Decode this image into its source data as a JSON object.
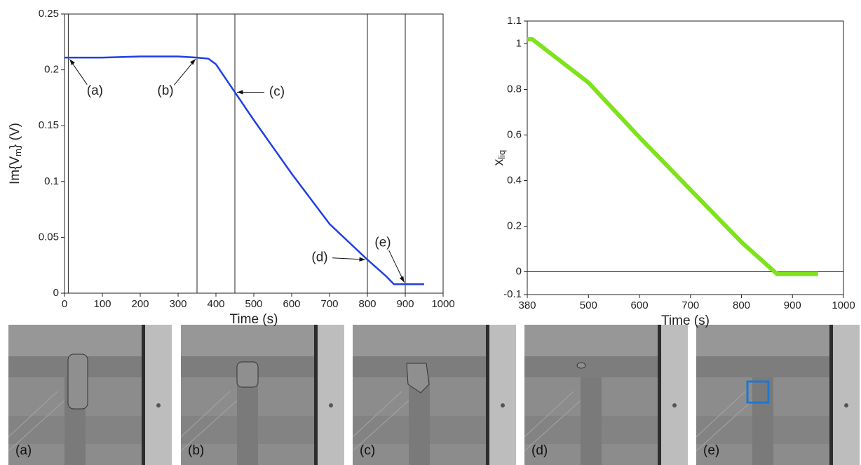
{
  "chart_data": [
    {
      "type": "line",
      "xlabel": "Time (s)",
      "ylabel": {
        "main": "Im{V",
        "sub": "m",
        "tail": "} (V)"
      },
      "xlim": [
        0,
        1000
      ],
      "xticks": [
        0,
        100,
        200,
        300,
        400,
        500,
        600,
        700,
        800,
        900,
        1000
      ],
      "ylim": [
        0,
        0.25
      ],
      "yticks": [
        0,
        0.05,
        0.1,
        0.15,
        0.2,
        0.25
      ],
      "vlines": [
        10,
        350,
        450,
        800,
        900
      ],
      "series": [
        {
          "color": "#1f3fe6",
          "x": [
            0,
            100,
            200,
            300,
            350,
            380,
            400,
            450,
            500,
            600,
            700,
            800,
            850,
            870,
            900,
            950
          ],
          "values": [
            0.211,
            0.211,
            0.212,
            0.212,
            0.211,
            0.21,
            0.205,
            0.18,
            0.155,
            0.107,
            0.062,
            0.03,
            0.015,
            0.008,
            0.008,
            0.008
          ]
        }
      ],
      "annotations": [
        {
          "text": "(a)",
          "x": 10,
          "y": 0.211
        },
        {
          "text": "(b)",
          "x": 350,
          "y": 0.211
        },
        {
          "text": "(c)",
          "x": 450,
          "y": 0.18
        },
        {
          "text": "(d)",
          "x": 800,
          "y": 0.03
        },
        {
          "text": "(e)",
          "x": 900,
          "y": 0.008
        }
      ]
    },
    {
      "type": "line",
      "xlabel": "Time (s)",
      "ylabel": {
        "main": "x",
        "sub": "liq"
      },
      "xlim": [
        380,
        1000
      ],
      "xticks": [
        380,
        500,
        600,
        700,
        800,
        900,
        1000
      ],
      "ylim": [
        -0.1,
        1.1
      ],
      "yticks": [
        -0.1,
        0,
        0.2,
        0.4,
        0.6,
        0.8,
        1,
        1.1
      ],
      "zero_line": true,
      "series": [
        {
          "color": "#7ee21c",
          "x": [
            380,
            390,
            500,
            600,
            700,
            800,
            870,
            950
          ],
          "values": [
            1.02,
            1.02,
            0.83,
            0.59,
            0.36,
            0.13,
            -0.01,
            -0.01
          ]
        }
      ]
    }
  ],
  "panels": [
    "(a)",
    "(b)",
    "(c)",
    "(d)",
    "(e)"
  ]
}
